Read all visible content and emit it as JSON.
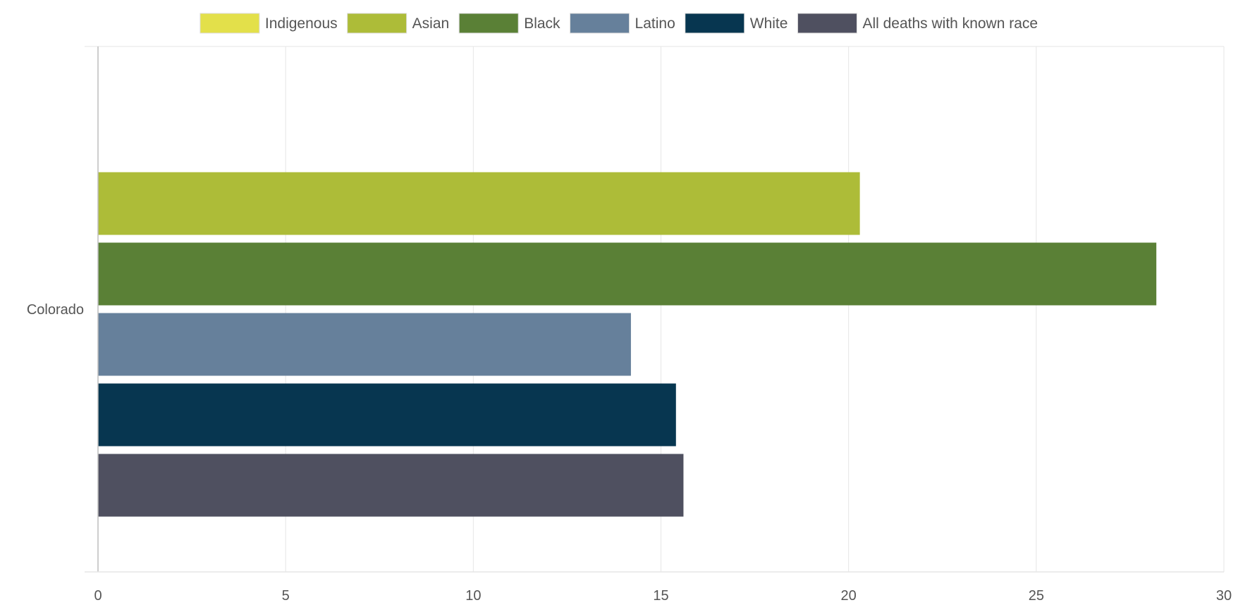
{
  "chart_data": {
    "type": "bar",
    "orientation": "horizontal",
    "categories": [
      "Colorado"
    ],
    "series": [
      {
        "name": "Indigenous",
        "color": "#e3e04a",
        "values": [
          null
        ]
      },
      {
        "name": "Asian",
        "color": "#adbc38",
        "values": [
          20.3
        ]
      },
      {
        "name": "Black",
        "color": "#5a8036",
        "values": [
          28.2
        ]
      },
      {
        "name": "Latino",
        "color": "#66809b",
        "values": [
          14.2
        ]
      },
      {
        "name": "White",
        "color": "#073650",
        "values": [
          15.4
        ]
      },
      {
        "name": "All deaths with known race",
        "color": "#4f5060",
        "values": [
          15.6
        ]
      }
    ],
    "xlim": [
      0,
      30
    ],
    "xticks": [
      "0",
      "5",
      "10",
      "15",
      "20",
      "25",
      "30"
    ],
    "grid": true,
    "legend": "top-center"
  }
}
